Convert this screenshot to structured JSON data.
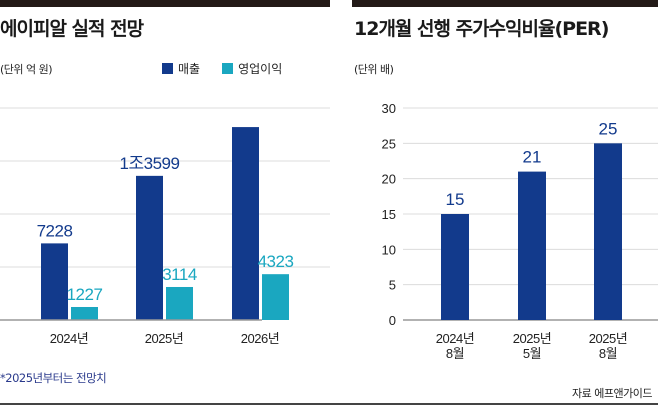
{
  "chart_data": [
    {
      "type": "bar",
      "title": "에이피알 실적 전망",
      "unit": "(단위 억 원)",
      "categories": [
        "2024년",
        "2025년",
        "2026년"
      ],
      "series": [
        {
          "name": "매출",
          "color": "#123a8c",
          "values": [
            7228,
            13599,
            18200
          ],
          "labels": [
            "7228",
            "1조3599",
            ""
          ]
        },
        {
          "name": "영업이익",
          "color": "#1aa7c0",
          "values": [
            1227,
            3114,
            4323
          ],
          "labels": [
            "1227",
            "3114",
            "4323"
          ]
        }
      ],
      "ylim": [
        0,
        20000
      ],
      "grid": true,
      "legend": "top-right",
      "note": "*2025년부터는 전망치"
    },
    {
      "type": "bar",
      "title": "12개월 선행 주가수익비율(PER)",
      "unit": "(단위 배)",
      "categories": [
        [
          "2024년",
          "8월"
        ],
        [
          "2025년",
          "5월"
        ],
        [
          "2025년",
          "8월"
        ]
      ],
      "values": [
        15,
        21,
        25
      ],
      "color": "#123a8c",
      "yticks": [
        0,
        5,
        10,
        15,
        20,
        25,
        30
      ],
      "ylim": [
        0,
        30
      ],
      "grid": true,
      "source": "자료 에프앤가이드"
    }
  ]
}
